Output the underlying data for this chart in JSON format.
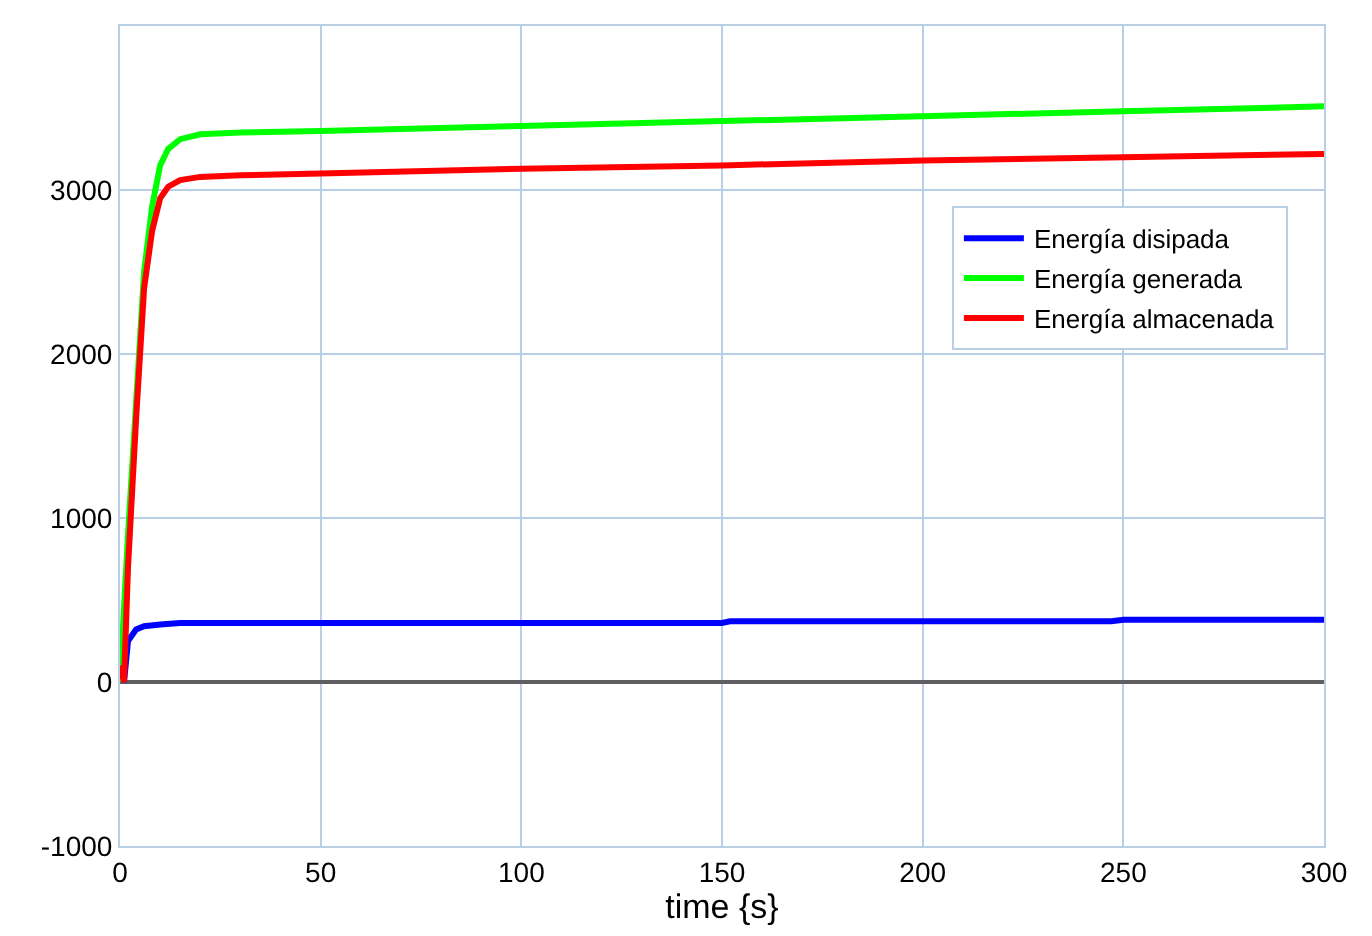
{
  "chart_data": {
    "type": "line",
    "xlabel": "time {s}",
    "xlim": [
      0,
      300
    ],
    "xticks": [
      0,
      50,
      100,
      150,
      200,
      250,
      300
    ],
    "ylim": [
      -1000,
      4000
    ],
    "yticks": [
      -1000,
      0,
      1000,
      2000,
      3000,
      {
        "value": 4000,
        "label": null
      }
    ],
    "grid": true,
    "legend": "top right",
    "marker": "none",
    "line_style": "solid",
    "series": [
      {
        "name": "Energía disipada",
        "color": "#0000ff",
        "x": [
          0,
          1,
          2,
          4,
          6,
          10,
          15,
          50,
          150,
          152,
          247,
          250,
          300
        ],
        "values": [
          100,
          0,
          250,
          320,
          340,
          350,
          360,
          360,
          360,
          370,
          370,
          380,
          380
        ]
      },
      {
        "name": "Energía generada",
        "color": "#00ff00",
        "x": [
          0,
          2,
          4,
          6,
          8,
          10,
          12,
          15,
          20,
          30,
          50,
          100,
          150,
          200,
          250,
          300
        ],
        "values": [
          0,
          900,
          1700,
          2500,
          2900,
          3150,
          3250,
          3310,
          3340,
          3350,
          3360,
          3390,
          3420,
          3450,
          3480,
          3510
        ]
      },
      {
        "name": "Energía almacenada",
        "color": "#ff0000",
        "x": [
          0,
          1,
          2,
          4,
          6,
          8,
          10,
          12,
          15,
          20,
          30,
          50,
          100,
          150,
          200,
          250,
          300
        ],
        "values": [
          100,
          0,
          700,
          1600,
          2400,
          2750,
          2950,
          3020,
          3060,
          3080,
          3090,
          3100,
          3130,
          3150,
          3180,
          3200,
          3220
        ]
      }
    ]
  }
}
